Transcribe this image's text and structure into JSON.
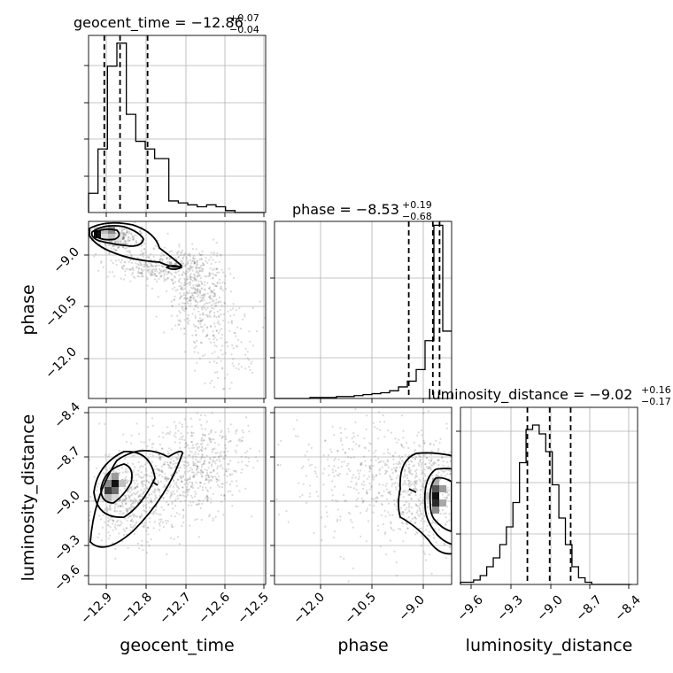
{
  "chart_data": {
    "type": "corner",
    "parameters": [
      "geocent_time",
      "phase",
      "luminosity_distance"
    ],
    "panels": [
      {
        "kind": "hist1d",
        "param": "geocent_time",
        "title": {
          "label": "geocent_time",
          "median": "−12.86",
          "plus": "+0.07",
          "minus": "−0.04"
        },
        "xlim": [
          -12.94,
          -12.49
        ],
        "bins": [
          -12.94,
          -12.928,
          -12.916,
          -12.904,
          -12.892,
          -12.88,
          -12.868,
          -12.856,
          -12.844,
          -12.832,
          -12.82,
          -12.808,
          -12.796,
          -12.784,
          -12.772,
          -12.76,
          -12.748,
          -12.736,
          -12.724,
          -12.712,
          -12.7,
          -12.688,
          -12.676,
          -12.664,
          -12.652,
          -12.64,
          -12.628,
          -12.616,
          -12.604,
          -12.592,
          -12.58,
          -12.568,
          -12.556,
          -12.544,
          -12.532,
          -12.52,
          -12.508,
          -12.496
        ],
        "counts": [
          10,
          10,
          33,
          33,
          76,
          76,
          88,
          88,
          51,
          51,
          37,
          37,
          33,
          33,
          28,
          28,
          28,
          6,
          6,
          5,
          5,
          4,
          4,
          3,
          3,
          4,
          4,
          3,
          3,
          1,
          1,
          0,
          0,
          0,
          0,
          0,
          0
        ],
        "quantiles": [
          -12.9,
          -12.86,
          -12.79
        ],
        "grid": true
      },
      {
        "kind": "hist1d",
        "param": "phase",
        "title": {
          "label": "phase",
          "median": "−8.53",
          "plus": "+0.19",
          "minus": "−0.68"
        },
        "xlim": [
          -13.0,
          -8.0
        ],
        "bins": [
          -13.0,
          -12.75,
          -12.5,
          -12.25,
          -12.0,
          -11.75,
          -11.5,
          -11.25,
          -11.0,
          -10.75,
          -10.5,
          -10.25,
          -10.0,
          -9.75,
          -9.5,
          -9.25,
          -9.0,
          -8.75,
          -8.5,
          -8.25,
          -8.0
        ],
        "counts": [
          0,
          0,
          0,
          0,
          0.5,
          0.5,
          0.5,
          1,
          1,
          1.5,
          2,
          2.5,
          3,
          4,
          6,
          9,
          15,
          30,
          90,
          35
        ],
        "quantiles": [
          -9.21,
          -8.53,
          -8.34
        ],
        "ticks": [
          "−12.0",
          "−10.5",
          "−9.0"
        ],
        "grid": true
      },
      {
        "kind": "hist1d",
        "param": "luminosity_distance",
        "title": {
          "label": "luminosity_distance",
          "median": "−9.02",
          "plus": "+0.16",
          "minus": "−0.17"
        },
        "xlim": [
          -9.7,
          -8.35
        ],
        "bins": [
          -9.7,
          -9.65,
          -9.6,
          -9.55,
          -9.5,
          -9.45,
          -9.4,
          -9.35,
          -9.3,
          -9.25,
          -9.2,
          -9.15,
          -9.1,
          -9.05,
          -9.0,
          -8.95,
          -8.9,
          -8.85,
          -8.8,
          -8.75,
          -8.7,
          -8.65,
          -8.6,
          -8.55,
          -8.5,
          -8.45,
          -8.4
        ],
        "counts": [
          1,
          1,
          2,
          4,
          8,
          12,
          18,
          26,
          37,
          55,
          70,
          72,
          68,
          60,
          45,
          30,
          18,
          8,
          3,
          1,
          0,
          0,
          0,
          0,
          0,
          0
        ],
        "quantiles": [
          -9.19,
          -9.02,
          -8.86
        ],
        "ticks": [
          "−9.6",
          "−9.3",
          "−9.0",
          "−8.7",
          "−8.4"
        ],
        "grid": true
      },
      {
        "kind": "hist2d",
        "x": "geocent_time",
        "y": "phase",
        "ylim": [
          -13.0,
          -8.0
        ],
        "yticks": [
          "−9.0",
          "−10.5",
          "−12.0"
        ],
        "grid": true
      },
      {
        "kind": "hist2d",
        "x": "geocent_time",
        "y": "luminosity_distance",
        "ylim": [
          -9.7,
          -8.35
        ],
        "yticks": [
          "−8.4",
          "−8.7",
          "−9.0",
          "−9.3",
          "−9.6"
        ],
        "xticks": [
          "−12.9",
          "−12.8",
          "−12.7",
          "−12.6",
          "−12.5"
        ],
        "grid": true
      },
      {
        "kind": "hist2d",
        "x": "phase",
        "y": "luminosity_distance",
        "xticks": [
          "−12.0",
          "−10.5",
          "−9.0"
        ],
        "grid": true
      }
    ],
    "axis_labels": {
      "x": [
        "geocent_time",
        "phase",
        "luminosity_distance"
      ],
      "y": [
        "phase",
        "luminosity_distance"
      ]
    }
  }
}
